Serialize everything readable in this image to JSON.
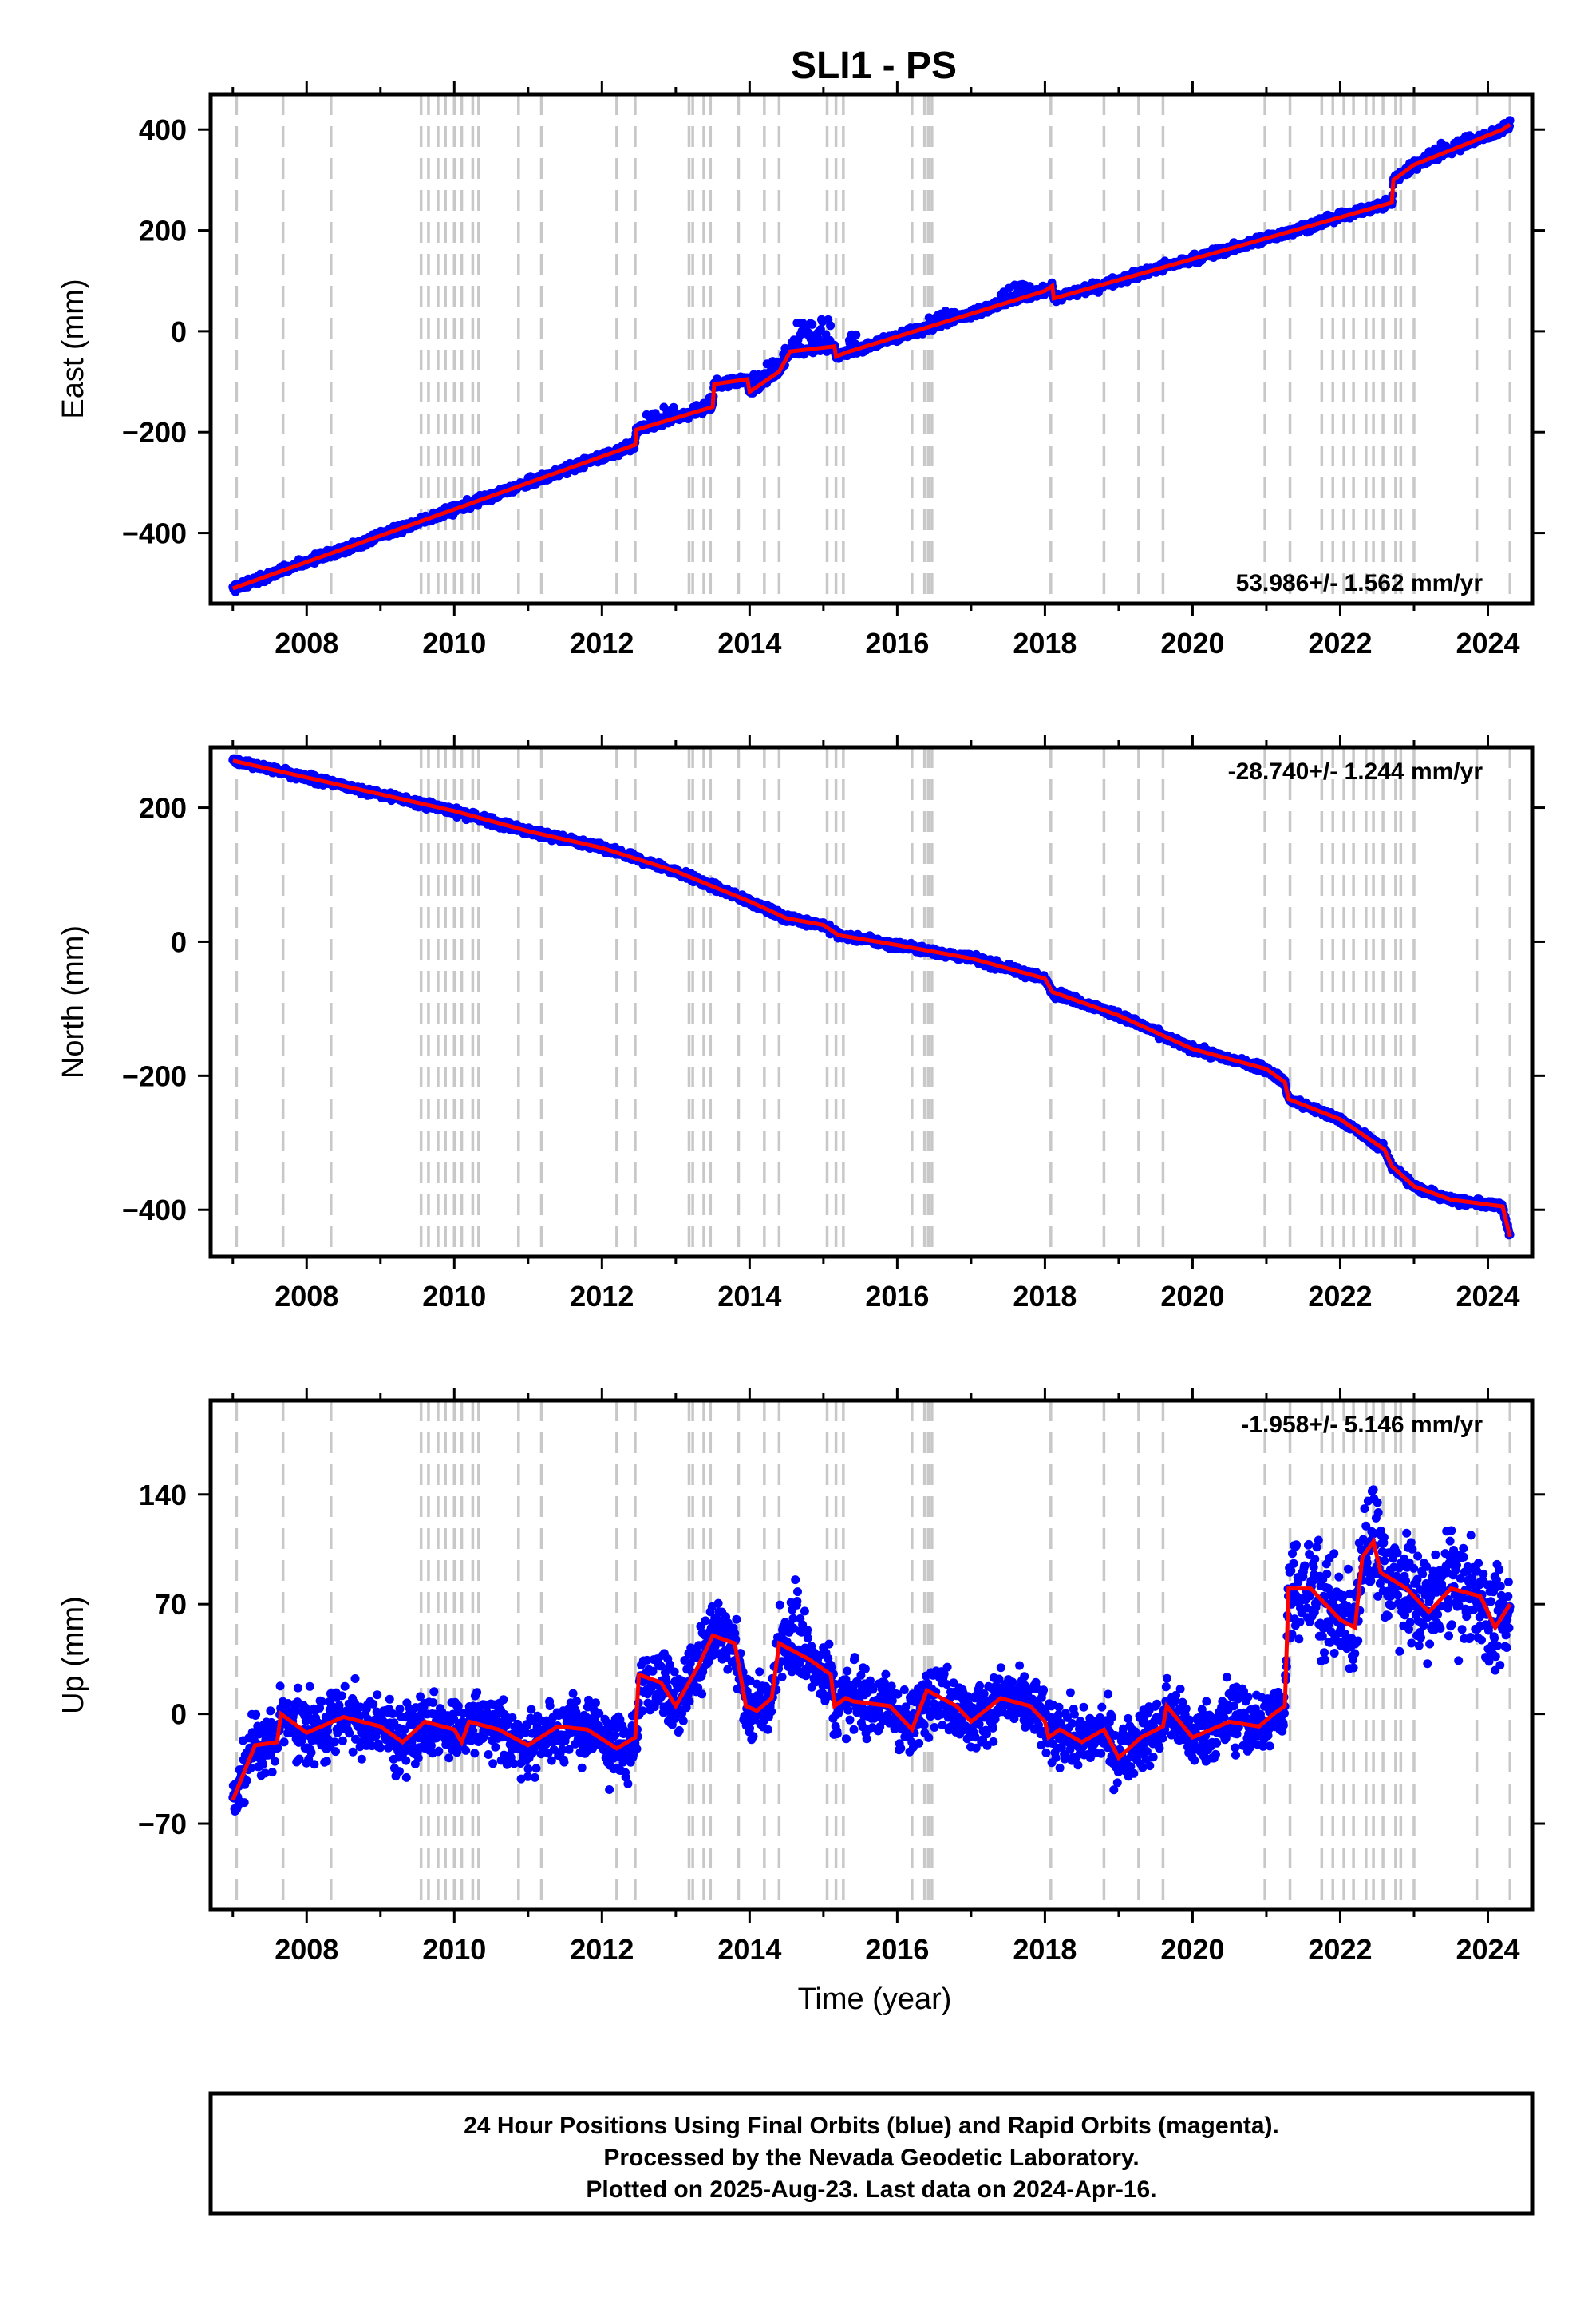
{
  "title": "SLI1 - PS",
  "colors": {
    "data": "#0000ff",
    "model": "#ff0000",
    "event_lines": "#c8c8c8"
  },
  "chart_data": [
    {
      "type": "scatter",
      "name": "east",
      "ylabel": "East (mm)",
      "xlabel": "",
      "rate_label": "53.986+/- 1.562 mm/yr",
      "rate_placement": "bottom-right",
      "xlim": [
        2006.7,
        2024.6
      ],
      "ylim": [
        -540,
        470
      ],
      "x_ticks": [
        2008,
        2010,
        2012,
        2014,
        2016,
        2018,
        2020,
        2022,
        2024
      ],
      "y_ticks": [
        -400,
        -200,
        0,
        200,
        400
      ],
      "model_line": [
        [
          2007.0,
          -510
        ],
        [
          2012.45,
          -225
        ],
        [
          2012.47,
          -195
        ],
        [
          2013.5,
          -150
        ],
        [
          2013.52,
          -105
        ],
        [
          2013.97,
          -95
        ],
        [
          2014.0,
          -120
        ],
        [
          2014.4,
          -80
        ],
        [
          2014.55,
          -40
        ],
        [
          2015.15,
          -30
        ],
        [
          2015.17,
          -50
        ],
        [
          2015.35,
          -40
        ],
        [
          2018.0,
          80
        ],
        [
          2018.1,
          90
        ],
        [
          2018.12,
          65
        ],
        [
          2022.7,
          255
        ],
        [
          2022.72,
          300
        ],
        [
          2023.0,
          330
        ],
        [
          2024.2,
          400
        ],
        [
          2024.3,
          410
        ]
      ],
      "residual_scale": 6,
      "excursions": [
        [
          2012.6,
          2013.0,
          25
        ],
        [
          2013.2,
          2013.5,
          20
        ],
        [
          2014.0,
          2014.5,
          30
        ],
        [
          2014.5,
          2015.1,
          60
        ],
        [
          2015.3,
          2015.5,
          35
        ],
        [
          2016.4,
          2016.8,
          20
        ],
        [
          2017.4,
          2017.8,
          25
        ],
        [
          2021.8,
          2022.3,
          10
        ],
        [
          2023.1,
          2023.8,
          15
        ]
      ]
    },
    {
      "type": "scatter",
      "name": "north",
      "ylabel": "North (mm)",
      "xlabel": "",
      "rate_label": "-28.740+/- 1.244 mm/yr",
      "rate_placement": "top-right",
      "xlim": [
        2006.7,
        2024.6
      ],
      "ylim": [
        -470,
        290
      ],
      "x_ticks": [
        2008,
        2010,
        2012,
        2014,
        2016,
        2018,
        2020,
        2022,
        2024
      ],
      "y_ticks": [
        -400,
        -200,
        0,
        200
      ],
      "model_line": [
        [
          2007.0,
          270
        ],
        [
          2008.0,
          245
        ],
        [
          2009.0,
          220
        ],
        [
          2010.0,
          195
        ],
        [
          2011.0,
          165
        ],
        [
          2012.0,
          140
        ],
        [
          2013.0,
          105
        ],
        [
          2014.0,
          60
        ],
        [
          2014.5,
          35
        ],
        [
          2015.0,
          25
        ],
        [
          2015.2,
          10
        ],
        [
          2016.0,
          -5
        ],
        [
          2017.0,
          -25
        ],
        [
          2018.0,
          -55
        ],
        [
          2018.1,
          -75
        ],
        [
          2019.0,
          -110
        ],
        [
          2020.0,
          -160
        ],
        [
          2021.0,
          -190
        ],
        [
          2021.25,
          -210
        ],
        [
          2021.3,
          -235
        ],
        [
          2022.0,
          -265
        ],
        [
          2022.6,
          -310
        ],
        [
          2022.7,
          -335
        ],
        [
          2023.0,
          -365
        ],
        [
          2023.5,
          -385
        ],
        [
          2024.2,
          -395
        ],
        [
          2024.3,
          -440
        ]
      ],
      "residual_scale": 4,
      "excursions": []
    },
    {
      "type": "scatter",
      "name": "up",
      "ylabel": "Up (mm)",
      "xlabel": "Time (year)",
      "rate_label": "-1.958+/- 5.146 mm/yr",
      "rate_placement": "top-right",
      "xlim": [
        2006.7,
        2024.6
      ],
      "ylim": [
        -125,
        200
      ],
      "x_ticks": [
        2008,
        2010,
        2012,
        2014,
        2016,
        2018,
        2020,
        2022,
        2024
      ],
      "y_ticks": [
        -70,
        0,
        70,
        140
      ],
      "model_line": [
        [
          2007.0,
          -55
        ],
        [
          2007.3,
          -20
        ],
        [
          2007.6,
          -18
        ],
        [
          2007.65,
          0
        ],
        [
          2008.0,
          -12
        ],
        [
          2008.5,
          -2
        ],
        [
          2009.0,
          -8
        ],
        [
          2009.3,
          -18
        ],
        [
          2009.6,
          -5
        ],
        [
          2010.0,
          -10
        ],
        [
          2010.1,
          -18
        ],
        [
          2010.2,
          -5
        ],
        [
          2010.6,
          -10
        ],
        [
          2011.0,
          -20
        ],
        [
          2011.4,
          -8
        ],
        [
          2011.8,
          -10
        ],
        [
          2012.2,
          -22
        ],
        [
          2012.45,
          -15
        ],
        [
          2012.5,
          25
        ],
        [
          2012.8,
          20
        ],
        [
          2013.0,
          5
        ],
        [
          2013.3,
          30
        ],
        [
          2013.5,
          50
        ],
        [
          2013.8,
          45
        ],
        [
          2013.95,
          5
        ],
        [
          2014.1,
          2
        ],
        [
          2014.3,
          10
        ],
        [
          2014.4,
          45
        ],
        [
          2014.8,
          35
        ],
        [
          2015.1,
          25
        ],
        [
          2015.15,
          5
        ],
        [
          2015.3,
          10
        ],
        [
          2015.4,
          8
        ],
        [
          2015.9,
          5
        ],
        [
          2016.2,
          -10
        ],
        [
          2016.4,
          15
        ],
        [
          2016.8,
          5
        ],
        [
          2017.0,
          -5
        ],
        [
          2017.4,
          10
        ],
        [
          2017.8,
          5
        ],
        [
          2018.0,
          -5
        ],
        [
          2018.05,
          -15
        ],
        [
          2018.2,
          -10
        ],
        [
          2018.5,
          -18
        ],
        [
          2018.8,
          -10
        ],
        [
          2019.0,
          -28
        ],
        [
          2019.3,
          -15
        ],
        [
          2019.6,
          -8
        ],
        [
          2019.65,
          5
        ],
        [
          2020.0,
          -15
        ],
        [
          2020.5,
          -5
        ],
        [
          2020.9,
          -8
        ],
        [
          2021.1,
          0
        ],
        [
          2021.25,
          5
        ],
        [
          2021.3,
          80
        ],
        [
          2021.6,
          80
        ],
        [
          2022.0,
          60
        ],
        [
          2022.2,
          55
        ],
        [
          2022.3,
          100
        ],
        [
          2022.45,
          110
        ],
        [
          2022.55,
          90
        ],
        [
          2022.9,
          80
        ],
        [
          2023.2,
          65
        ],
        [
          2023.5,
          80
        ],
        [
          2023.9,
          75
        ],
        [
          2024.1,
          55
        ],
        [
          2024.3,
          70
        ]
      ],
      "residual_scale": 14,
      "excursions": [
        [
          2012.3,
          2012.6,
          -25
        ],
        [
          2013.3,
          2013.6,
          25
        ],
        [
          2014.4,
          2014.8,
          30
        ],
        [
          2015.4,
          2015.6,
          20
        ],
        [
          2016.4,
          2016.7,
          15
        ],
        [
          2020.4,
          2020.8,
          20
        ],
        [
          2021.3,
          2021.6,
          25
        ],
        [
          2022.3,
          2022.6,
          20
        ],
        [
          2023.2,
          2023.6,
          25
        ]
      ]
    }
  ],
  "event_lines": [
    2007.05,
    2007.68,
    2008.33,
    2009.55,
    2009.65,
    2009.78,
    2009.88,
    2010.0,
    2010.1,
    2010.25,
    2010.33,
    2010.87,
    2011.18,
    2012.2,
    2012.45,
    2013.18,
    2013.23,
    2013.38,
    2013.47,
    2013.85,
    2014.2,
    2014.4,
    2015.05,
    2015.17,
    2015.27,
    2016.2,
    2016.37,
    2016.42,
    2016.47,
    2018.08,
    2018.8,
    2019.27,
    2019.6,
    2020.98,
    2021.32,
    2021.75,
    2021.9,
    2022.05,
    2022.18,
    2022.35,
    2022.45,
    2022.58,
    2022.75,
    2022.82,
    2023.0,
    2023.85,
    2024.3
  ],
  "footer": {
    "line1": "24 Hour Positions Using Final Orbits (blue) and Rapid Orbits (magenta).",
    "line2": "Processed by the Nevada Geodetic Laboratory.",
    "line3": "Plotted on 2025-Aug-23. Last data on 2024-Apr-16."
  }
}
